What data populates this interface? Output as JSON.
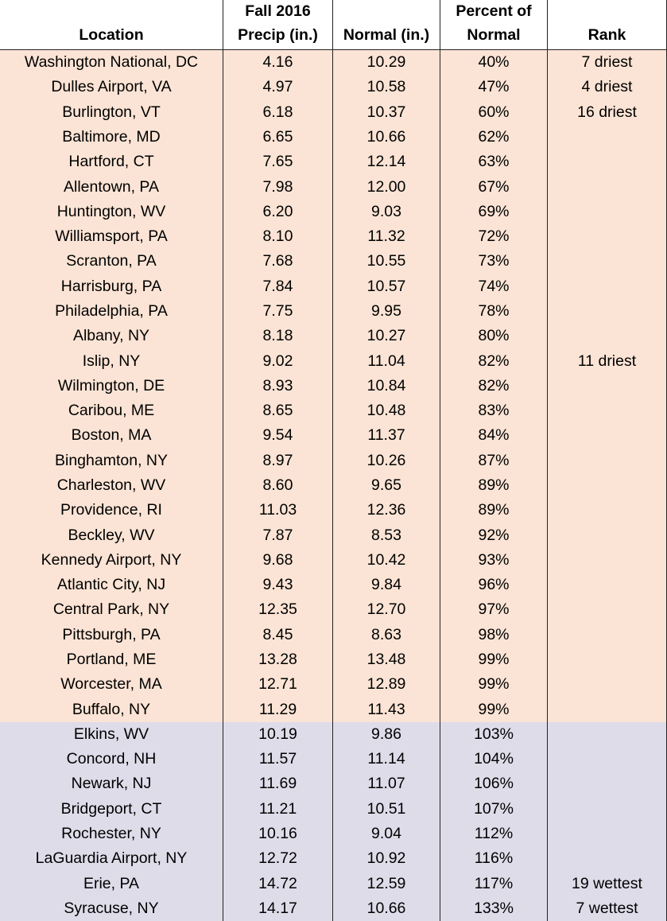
{
  "table": {
    "header": [
      [
        "Location"
      ],
      [
        "Fall 2016",
        "Precip (in.)"
      ],
      [
        "Normal (in.)"
      ],
      [
        "Percent of",
        "Normal"
      ],
      [
        "Rank"
      ]
    ],
    "groups": [
      {
        "color": "#fbe4d5",
        "rows": [
          {
            "location": "Washington National, DC",
            "precip": "4.16",
            "normal": "10.29",
            "percent": "40%",
            "rank": "7 driest"
          },
          {
            "location": "Dulles Airport, VA",
            "precip": "4.97",
            "normal": "10.58",
            "percent": "47%",
            "rank": "4 driest"
          },
          {
            "location": "Burlington, VT",
            "precip": "6.18",
            "normal": "10.37",
            "percent": "60%",
            "rank": "16 driest"
          },
          {
            "location": "Baltimore, MD",
            "precip": "6.65",
            "normal": "10.66",
            "percent": "62%"
          },
          {
            "location": "Hartford, CT",
            "precip": "7.65",
            "normal": "12.14",
            "percent": "63%"
          },
          {
            "location": "Allentown, PA",
            "precip": "7.98",
            "normal": "12.00",
            "percent": "67%"
          },
          {
            "location": "Huntington, WV",
            "precip": "6.20",
            "normal": "9.03",
            "percent": "69%"
          },
          {
            "location": "Williamsport, PA",
            "precip": "8.10",
            "normal": "11.32",
            "percent": "72%"
          },
          {
            "location": "Scranton, PA",
            "precip": "7.68",
            "normal": "10.55",
            "percent": "73%"
          },
          {
            "location": "Harrisburg, PA",
            "precip": "7.84",
            "normal": "10.57",
            "percent": "74%"
          },
          {
            "location": "Philadelphia, PA",
            "precip": "7.75",
            "normal": "9.95",
            "percent": "78%"
          },
          {
            "location": "Albany, NY",
            "precip": "8.18",
            "normal": "10.27",
            "percent": "80%"
          },
          {
            "location": "Islip, NY",
            "precip": "9.02",
            "normal": "11.04",
            "percent": "82%",
            "rank": "11 driest"
          },
          {
            "location": "Wilmington, DE",
            "precip": "8.93",
            "normal": "10.84",
            "percent": "82%"
          },
          {
            "location": "Caribou, ME",
            "precip": "8.65",
            "normal": "10.48",
            "percent": "83%"
          },
          {
            "location": "Boston, MA",
            "precip": "9.54",
            "normal": "11.37",
            "percent": "84%"
          },
          {
            "location": "Binghamton, NY",
            "precip": "8.97",
            "normal": "10.26",
            "percent": "87%"
          },
          {
            "location": "Charleston, WV",
            "precip": "8.60",
            "normal": "9.65",
            "percent": "89%"
          },
          {
            "location": "Providence, RI",
            "precip": "11.03",
            "normal": "12.36",
            "percent": "89%"
          },
          {
            "location": "Beckley, WV",
            "precip": "7.87",
            "normal": "8.53",
            "percent": "92%"
          },
          {
            "location": "Kennedy Airport, NY",
            "precip": "9.68",
            "normal": "10.42",
            "percent": "93%"
          },
          {
            "location": "Atlantic City, NJ",
            "precip": "9.43",
            "normal": "9.84",
            "percent": "96%"
          },
          {
            "location": "Central Park, NY",
            "precip": "12.35",
            "normal": "12.70",
            "percent": "97%"
          },
          {
            "location": "Pittsburgh, PA",
            "precip": "8.45",
            "normal": "8.63",
            "percent": "98%"
          },
          {
            "location": "Portland, ME",
            "precip": "13.28",
            "normal": "13.48",
            "percent": "99%"
          },
          {
            "location": "Worcester, MA",
            "precip": "12.71",
            "normal": "12.89",
            "percent": "99%"
          },
          {
            "location": "Buffalo, NY",
            "precip": "11.29",
            "normal": "11.43",
            "percent": "99%"
          }
        ]
      },
      {
        "color": "#dfdcea",
        "rows": [
          {
            "location": "Elkins, WV",
            "precip": "10.19",
            "normal": "9.86",
            "percent": "103%"
          },
          {
            "location": "Concord, NH",
            "precip": "11.57",
            "normal": "11.14",
            "percent": "104%"
          },
          {
            "location": "Newark, NJ",
            "precip": "11.69",
            "normal": "11.07",
            "percent": "106%"
          },
          {
            "location": "Bridgeport, CT",
            "precip": "11.21",
            "normal": "10.51",
            "percent": "107%"
          },
          {
            "location": "Rochester, NY",
            "precip": "10.16",
            "normal": "9.04",
            "percent": "112%"
          },
          {
            "location": "LaGuardia Airport, NY",
            "precip": "12.72",
            "normal": "10.92",
            "percent": "116%"
          },
          {
            "location": "Erie, PA",
            "precip": "14.72",
            "normal": "12.59",
            "percent": "117%",
            "rank": "19 wettest"
          },
          {
            "location": "Syracuse, NY",
            "precip": "14.17",
            "normal": "10.66",
            "percent": "133%",
            "rank": "7 wettest"
          }
        ]
      }
    ]
  }
}
